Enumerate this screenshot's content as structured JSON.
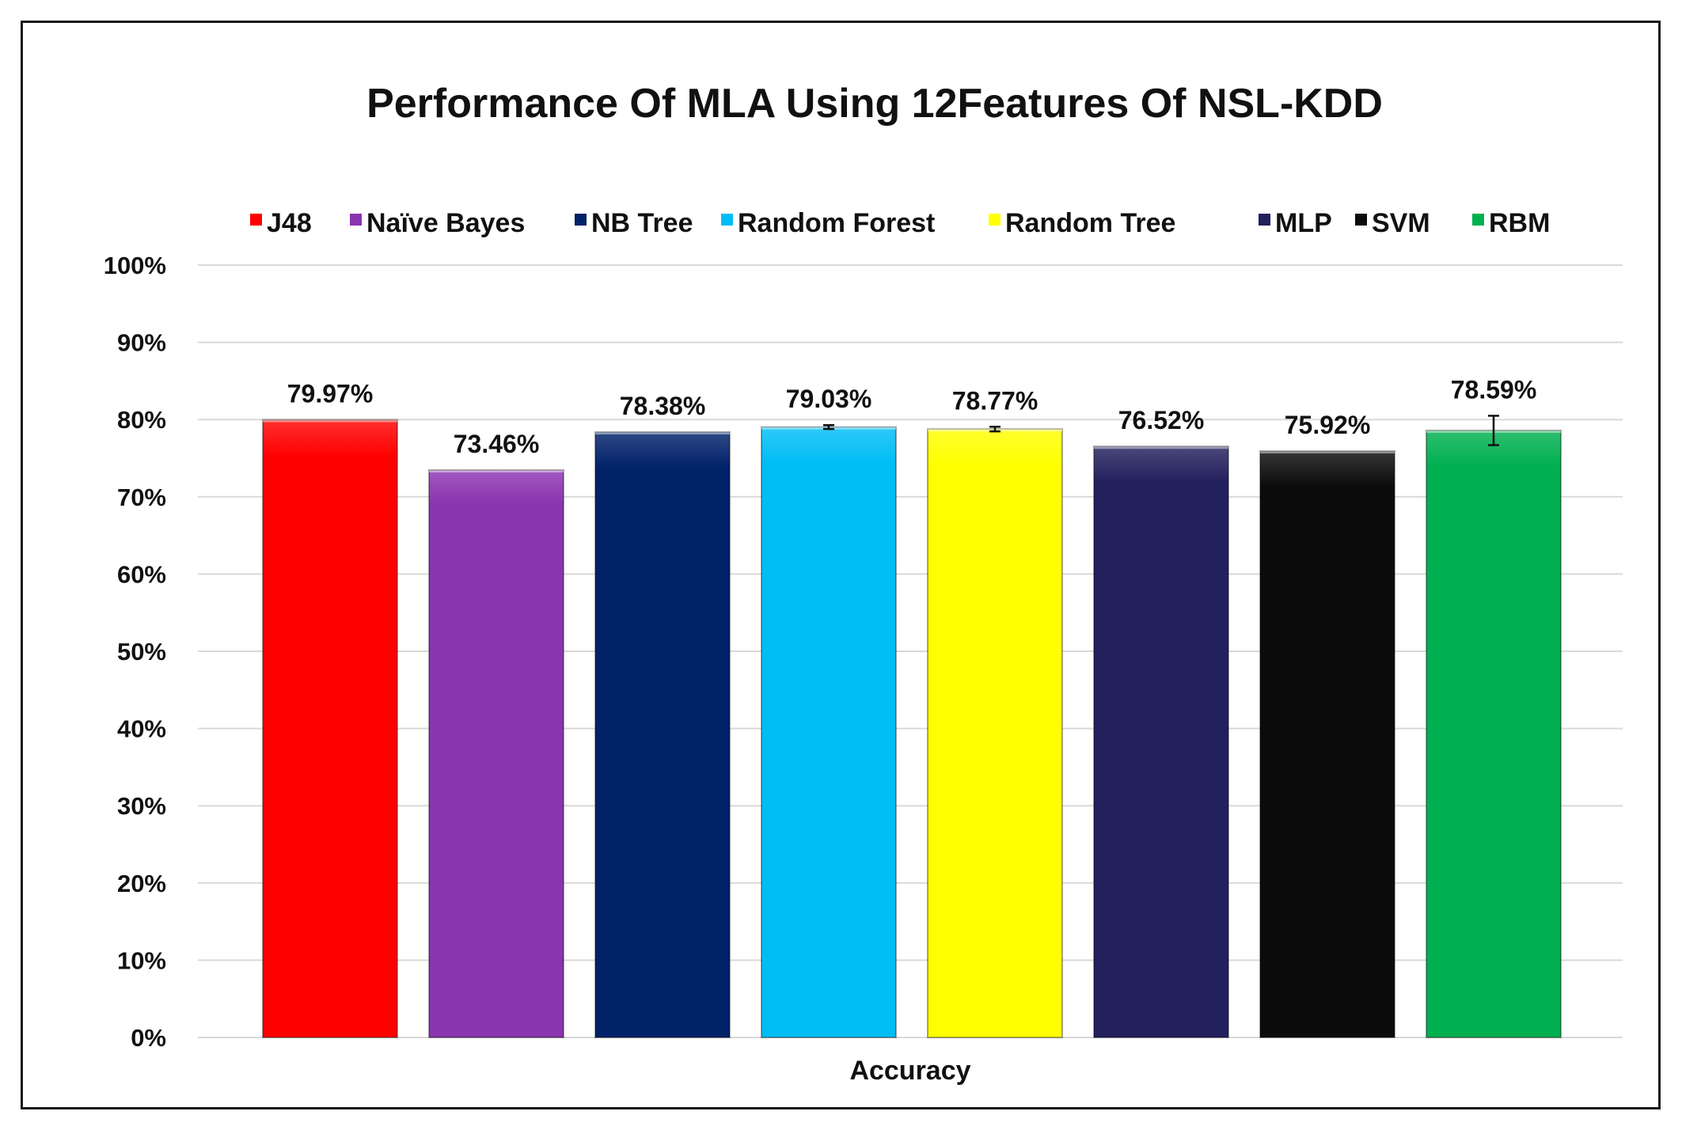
{
  "chart_data": {
    "type": "bar",
    "title": "Performance Of MLA Using 12Features Of NSL-KDD",
    "xlabel": "Accuracy",
    "ylabel": "",
    "categories": [
      "Accuracy"
    ],
    "ylim": [
      0,
      100
    ],
    "yticks": [
      0,
      10,
      20,
      30,
      40,
      50,
      60,
      70,
      80,
      90,
      100
    ],
    "ytick_labels": [
      "0%",
      "10%",
      "20%",
      "30%",
      "40%",
      "50%",
      "60%",
      "70%",
      "80%",
      "90%",
      "100%"
    ],
    "grid": true,
    "legend_position": "top",
    "series": [
      {
        "name": "J48",
        "value": 79.97,
        "label": "79.97%",
        "color": "#ff0000",
        "error": 0
      },
      {
        "name": "Naïve Bayes",
        "value": 73.46,
        "label": "73.46%",
        "color": "#8a35b0",
        "error": 0
      },
      {
        "name": "NB Tree",
        "value": 78.38,
        "label": "78.38%",
        "color": "#012169",
        "error": 0
      },
      {
        "name": "Random Forest",
        "value": 79.03,
        "label": "79.03%",
        "color": "#00bdf5",
        "error": 0.25
      },
      {
        "name": "Random Tree",
        "value": 78.77,
        "label": "78.77%",
        "color": "#ffff00",
        "error": 0.3
      },
      {
        "name": "MLP",
        "value": 76.52,
        "label": "76.52%",
        "color": "#23205e",
        "error": 0
      },
      {
        "name": "SVM",
        "value": 75.92,
        "label": "75.92%",
        "color": "#0b0b0b",
        "error": 0
      },
      {
        "name": "RBM",
        "value": 78.59,
        "label": "78.59%",
        "color": "#00b050",
        "error": 1.9
      }
    ]
  }
}
